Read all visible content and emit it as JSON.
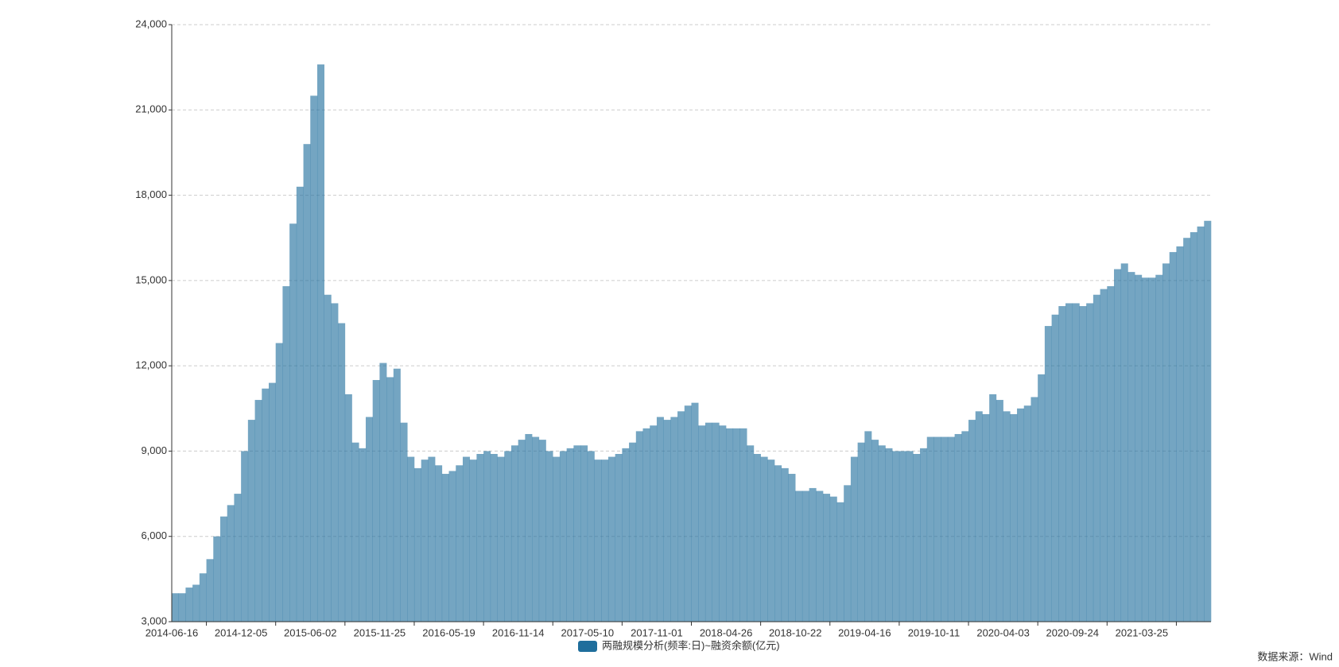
{
  "chart_data": {
    "type": "bar",
    "source": "数据来源：Wind",
    "categories": [
      "2014-06-16",
      null,
      null,
      null,
      null,
      null,
      null,
      null,
      null,
      null,
      "2014-12-05",
      null,
      null,
      null,
      null,
      null,
      null,
      null,
      null,
      null,
      "2015-06-02",
      null,
      null,
      null,
      null,
      null,
      null,
      null,
      null,
      null,
      "2015-11-25",
      null,
      null,
      null,
      null,
      null,
      null,
      null,
      null,
      null,
      "2016-05-19",
      null,
      null,
      null,
      null,
      null,
      null,
      null,
      null,
      null,
      "2016-11-14",
      null,
      null,
      null,
      null,
      null,
      null,
      null,
      null,
      null,
      "2017-05-10",
      null,
      null,
      null,
      null,
      null,
      null,
      null,
      null,
      null,
      "2017-11-01",
      null,
      null,
      null,
      null,
      null,
      null,
      null,
      null,
      null,
      "2018-04-26",
      null,
      null,
      null,
      null,
      null,
      null,
      null,
      null,
      null,
      "2018-10-22",
      null,
      null,
      null,
      null,
      null,
      null,
      null,
      null,
      null,
      "2019-04-16",
      null,
      null,
      null,
      null,
      null,
      null,
      null,
      null,
      null,
      "2019-10-11",
      null,
      null,
      null,
      null,
      null,
      null,
      null,
      null,
      null,
      "2020-04-03",
      null,
      null,
      null,
      null,
      null,
      null,
      null,
      null,
      null,
      "2020-09-24",
      null,
      null,
      null,
      null,
      null,
      null,
      null,
      null,
      null,
      "2021-03-25",
      null,
      null,
      null,
      null,
      null,
      null,
      null,
      null,
      null
    ],
    "series": [
      {
        "name": "两融规模分析(频率:日)~融资余额(亿元)",
        "color": "#1f6e9c",
        "opacity": 0.62,
        "values": [
          4000,
          4000,
          4200,
          4300,
          4700,
          5200,
          6000,
          6700,
          7100,
          7500,
          9000,
          10100,
          10800,
          11200,
          11400,
          12800,
          14800,
          17000,
          18300,
          19800,
          21500,
          22600,
          14500,
          14200,
          13500,
          11000,
          9300,
          9100,
          10200,
          11500,
          12100,
          11600,
          11900,
          10000,
          8800,
          8400,
          8700,
          8800,
          8500,
          8200,
          8300,
          8500,
          8800,
          8700,
          8900,
          9000,
          8900,
          8800,
          9000,
          9200,
          9400,
          9600,
          9500,
          9400,
          9000,
          8800,
          9000,
          9100,
          9200,
          9200,
          9000,
          8700,
          8700,
          8800,
          8900,
          9100,
          9300,
          9700,
          9800,
          9900,
          10200,
          10100,
          10200,
          10400,
          10600,
          10700,
          9900,
          10000,
          10000,
          9900,
          9800,
          9800,
          9800,
          9200,
          8900,
          8800,
          8700,
          8500,
          8400,
          8200,
          7600,
          7600,
          7700,
          7600,
          7500,
          7400,
          7200,
          7800,
          8800,
          9300,
          9700,
          9400,
          9200,
          9100,
          9000,
          9000,
          9000,
          8900,
          9100,
          9500,
          9500,
          9500,
          9500,
          9600,
          9700,
          10100,
          10400,
          10300,
          11000,
          10800,
          10400,
          10300,
          10500,
          10600,
          10900,
          11700,
          13400,
          13800,
          14100,
          14200,
          14200,
          14100,
          14200,
          14500,
          14700,
          14800,
          15400,
          15600,
          15300,
          15200,
          15100,
          15100,
          15200,
          15600,
          16000,
          16200,
          16500,
          16700,
          16900,
          17100
        ]
      }
    ],
    "ylim": [
      3000,
      24000
    ],
    "yticks": [
      {
        "value": 3000,
        "label": "3,000"
      },
      {
        "value": 6000,
        "label": "6,000"
      },
      {
        "value": 9000,
        "label": "9,000"
      },
      {
        "value": 12000,
        "label": "12,000"
      },
      {
        "value": 15000,
        "label": "15,000"
      },
      {
        "value": 18000,
        "label": "18,000"
      },
      {
        "value": 21000,
        "label": "21,000"
      },
      {
        "value": 24000,
        "label": "24,000"
      }
    ],
    "grid": true
  }
}
